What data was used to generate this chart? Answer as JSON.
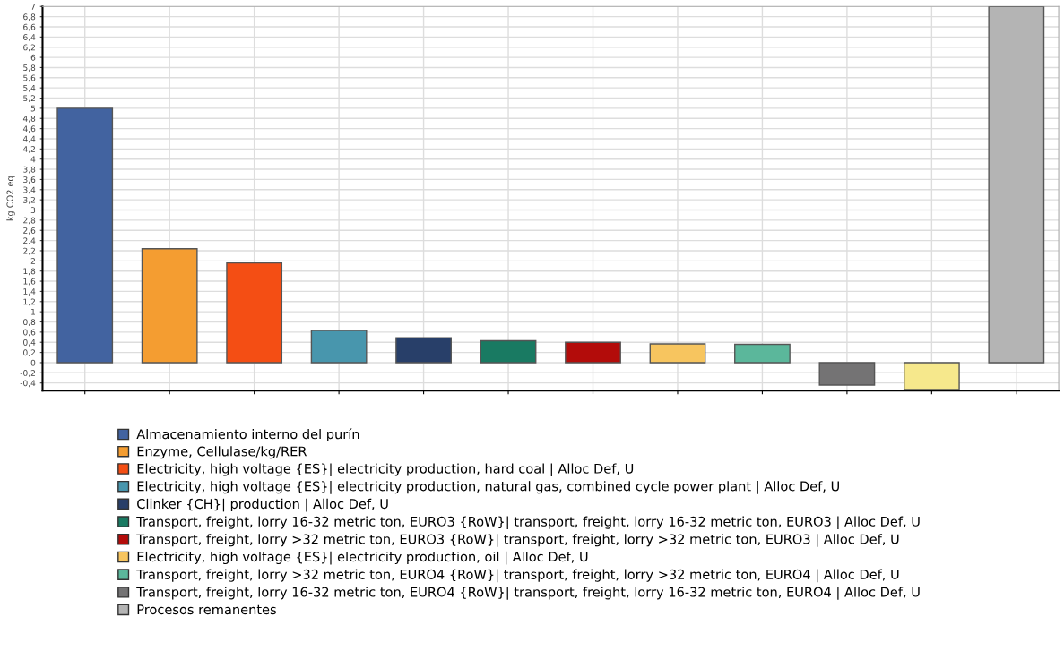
{
  "chart_data": {
    "type": "bar",
    "ylabel": "kg CO2 eq",
    "categories": [
      null,
      null,
      null,
      null,
      null,
      null,
      null,
      null,
      null,
      null,
      null,
      null
    ],
    "series": [
      {
        "name": "Almacenamiento interno del purín",
        "color": "#4263a0",
        "values": [
          5.0,
          null,
          null,
          null,
          null,
          null,
          null,
          null,
          null,
          null,
          null,
          null
        ]
      },
      {
        "name": "Enzyme, Cellulase/kg/RER",
        "color": "#f49d31",
        "values": [
          null,
          2.24,
          null,
          null,
          null,
          null,
          null,
          null,
          null,
          null,
          null,
          null
        ]
      },
      {
        "name": "Electricity, high voltage {ES}| electricity production, hard coal | Alloc Def, U",
        "color": "#f44e14",
        "values": [
          null,
          null,
          1.96,
          null,
          null,
          null,
          null,
          null,
          null,
          null,
          null,
          null
        ]
      },
      {
        "name": "Electricity, high voltage {ES}| electricity production, natural gas, combined cycle power plant | Alloc Def, U",
        "color": "#4896ad",
        "values": [
          null,
          null,
          null,
          0.63,
          null,
          null,
          null,
          null,
          null,
          null,
          null,
          null
        ]
      },
      {
        "name": "Clinker {CH}| production | Alloc Def, U",
        "color": "#283f69",
        "values": [
          null,
          null,
          null,
          null,
          0.49,
          null,
          null,
          null,
          null,
          null,
          null,
          null
        ]
      },
      {
        "name": "Transport, freight, lorry 16-32 metric ton, EURO3 {RoW}| transport, freight, lorry 16-32 metric ton, EURO3 | Alloc Def, U",
        "color": "#197a62",
        "values": [
          null,
          null,
          null,
          null,
          null,
          0.43,
          null,
          null,
          null,
          null,
          null,
          null
        ]
      },
      {
        "name": "Transport, freight, lorry >32 metric ton, EURO3 {RoW}| transport, freight, lorry >32 metric ton, EURO3 | Alloc Def, U",
        "color": "#b30c0a",
        "values": [
          null,
          null,
          null,
          null,
          null,
          null,
          0.4,
          null,
          null,
          null,
          null,
          null
        ]
      },
      {
        "name": "Electricity, high voltage {ES}| electricity production, oil | Alloc Def, U",
        "color": "#f7c55f",
        "values": [
          null,
          null,
          null,
          null,
          null,
          null,
          null,
          0.37,
          null,
          null,
          null,
          null
        ]
      },
      {
        "name": "Transport, freight, lorry >32 metric ton, EURO4 {RoW}| transport, freight, lorry >32 metric ton, EURO4 | Alloc Def, U",
        "color": "#5bb79b",
        "values": [
          null,
          null,
          null,
          null,
          null,
          null,
          null,
          null,
          0.36,
          null,
          null,
          null
        ]
      },
      {
        "name": "Transport, freight, lorry 16-32 metric ton, EURO4 {RoW}| transport, freight, lorry 16-32 metric ton, EURO4 | Alloc Def, U",
        "color": "#747374",
        "values": [
          null,
          null,
          null,
          null,
          null,
          null,
          null,
          null,
          null,
          -0.44,
          null,
          null
        ]
      },
      {
        "color": "#f6e88c",
        "values": [
          null,
          null,
          null,
          null,
          null,
          null,
          null,
          null,
          null,
          null,
          -0.53,
          null
        ]
      },
      {
        "name": "Procesos remanentes",
        "color": "#b4b4b4",
        "values": [
          null,
          null,
          null,
          null,
          null,
          null,
          null,
          null,
          null,
          null,
          null,
          7.0
        ]
      }
    ],
    "ylim": [
      -0.55,
      7.0
    ],
    "yticks": [
      {
        "value": -0.4,
        "label": "-0,4"
      },
      {
        "value": -0.2,
        "label": "-0,2"
      },
      0,
      {
        "value": 0.2,
        "label": "0,2"
      },
      {
        "value": 0.4,
        "label": "0,4"
      },
      {
        "value": 0.6,
        "label": "0,6"
      },
      {
        "value": 0.8,
        "label": "0,8"
      },
      1,
      {
        "value": 1.2,
        "label": "1,2"
      },
      {
        "value": 1.4,
        "label": "1,4"
      },
      {
        "value": 1.6,
        "label": "1,6"
      },
      {
        "value": 1.8,
        "label": "1,8"
      },
      2,
      {
        "value": 2.2,
        "label": "2,2"
      },
      {
        "value": 2.4,
        "label": "2,4"
      },
      {
        "value": 2.6,
        "label": "2,6"
      },
      {
        "value": 2.8,
        "label": "2,8"
      },
      3,
      {
        "value": 3.2,
        "label": "3,2"
      },
      {
        "value": 3.4,
        "label": "3,4"
      },
      {
        "value": 3.6,
        "label": "3,6"
      },
      {
        "value": 3.8,
        "label": "3,8"
      },
      4,
      {
        "value": 4.2,
        "label": "4,2"
      },
      {
        "value": 4.4,
        "label": "4,4"
      },
      {
        "value": 4.6,
        "label": "4,6"
      },
      {
        "value": 4.8,
        "label": "4,8"
      },
      5,
      {
        "value": 5.2,
        "label": "5,2"
      },
      {
        "value": 5.4,
        "label": "5,4"
      },
      {
        "value": 5.6,
        "label": "5,6"
      },
      {
        "value": 5.8,
        "label": "5,8"
      },
      6,
      {
        "value": 6.2,
        "label": "6,2"
      },
      {
        "value": 6.4,
        "label": "6,4"
      },
      {
        "value": 6.6,
        "label": "6,6"
      },
      {
        "value": 6.8,
        "label": "6,8"
      },
      7
    ],
    "grid": true,
    "legend": "bottom",
    "tick_labels": "y"
  }
}
